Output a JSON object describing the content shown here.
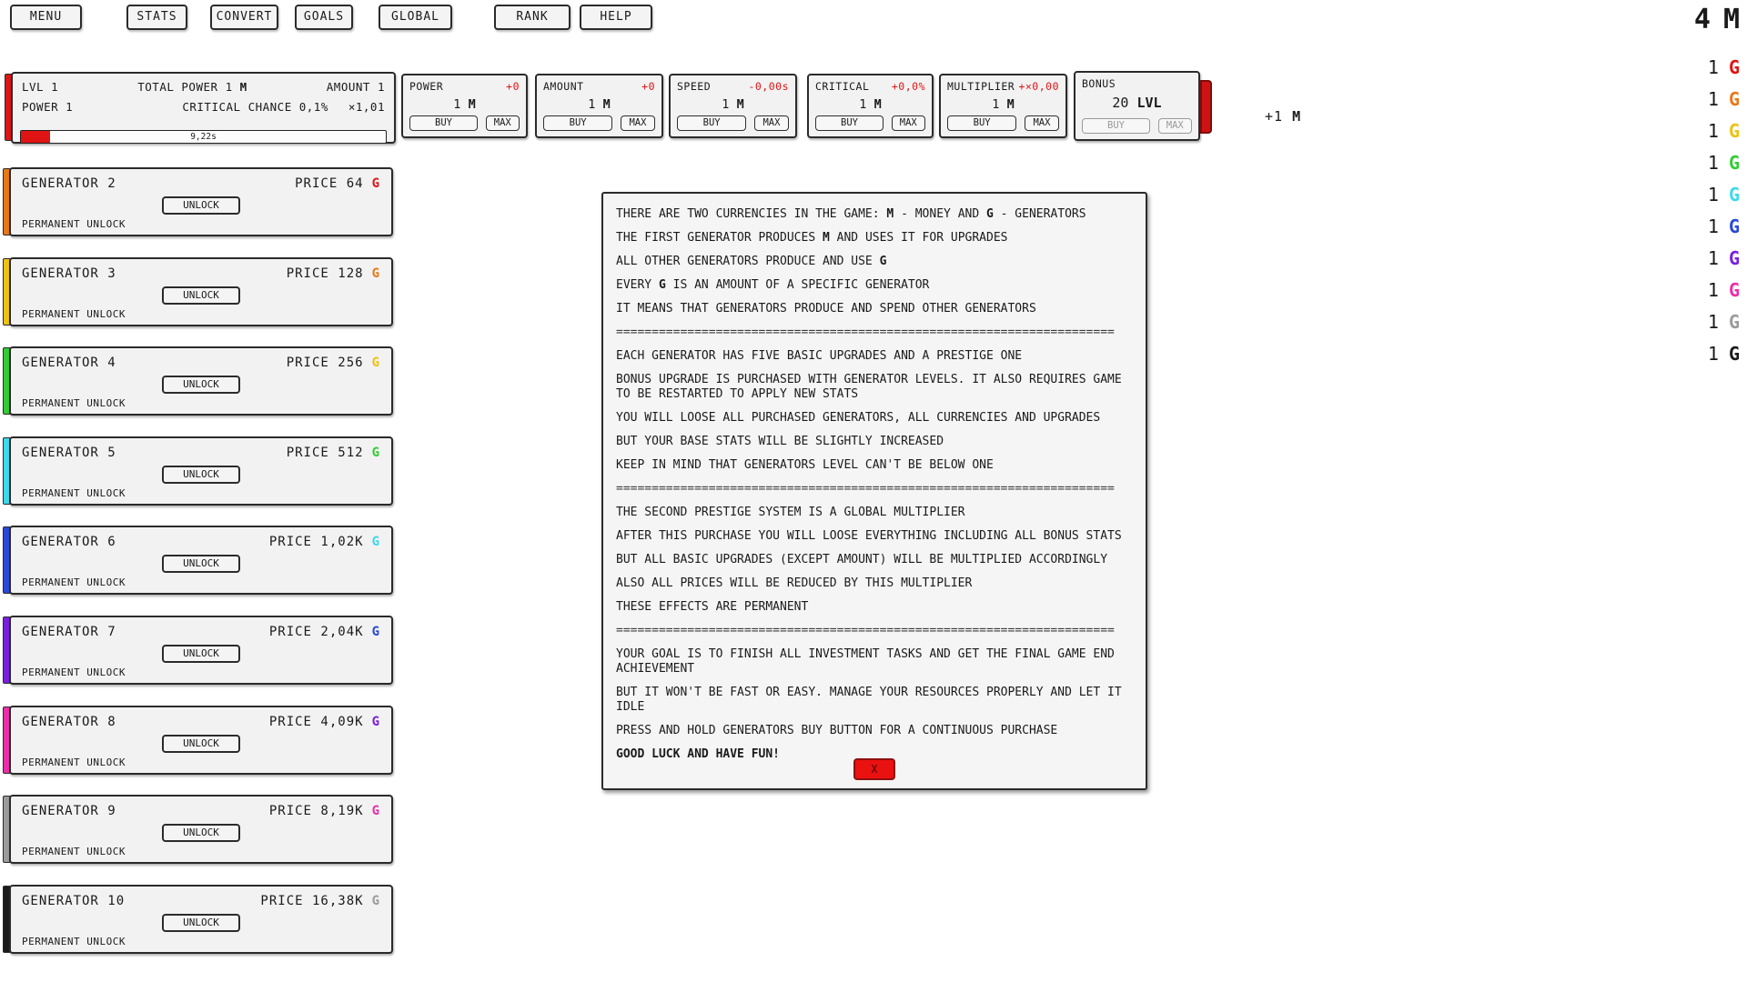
{
  "palette": {
    "red": "#e01414",
    "orange": "#e87817",
    "yellow": "#edc211",
    "green": "#33cc33",
    "cyan": "#3dd9ed",
    "blue": "#2849d8",
    "purple": "#7a1fe0",
    "magenta": "#ea2fa8",
    "gray": "#9b9b9b",
    "black": "#1a1a1a",
    "accent_red": "#e01414"
  },
  "menu_bar": {
    "buttons": [
      {
        "label": "MENU"
      },
      {
        "label": "STATS"
      },
      {
        "label": "CONVERT"
      },
      {
        "label": "GOALS"
      },
      {
        "label": "GLOBAL"
      },
      {
        "label": "RANK"
      },
      {
        "label": "HELP"
      }
    ]
  },
  "currencies": {
    "money": {
      "value": "4",
      "symbol": "M"
    },
    "generators": [
      {
        "value": "1",
        "symbol": "G",
        "color": "#e01414"
      },
      {
        "value": "1",
        "symbol": "G",
        "color": "#e87817"
      },
      {
        "value": "1",
        "symbol": "G",
        "color": "#edc211"
      },
      {
        "value": "1",
        "symbol": "G",
        "color": "#33cc33"
      },
      {
        "value": "1",
        "symbol": "G",
        "color": "#3dd9ed"
      },
      {
        "value": "1",
        "symbol": "G",
        "color": "#2849d8"
      },
      {
        "value": "1",
        "symbol": "G",
        "color": "#7a1fe0"
      },
      {
        "value": "1",
        "symbol": "G",
        "color": "#ea2fa8"
      },
      {
        "value": "1",
        "symbol": "G",
        "color": "#9b9b9b"
      },
      {
        "value": "1",
        "symbol": "G",
        "color": "#1a1a1a"
      }
    ]
  },
  "main_generator": {
    "lvl": "LVL 1",
    "total_power_label": "TOTAL POWER",
    "total_power_value": "1",
    "total_power_symbol": "M",
    "amount": "AMOUNT 1",
    "power": "POWER 1",
    "critical": "CRITICAL CHANCE 0,1%",
    "critical_multiplier": "×1,01",
    "progress": {
      "time_remaining": "9,22s",
      "fill_percent": 8
    },
    "stripe_color": "#e01414"
  },
  "upgrades": [
    {
      "name": "POWER",
      "delta": "+0",
      "price_value": "1",
      "price_symbol": "M",
      "buy_label": "BUY",
      "max_label": "MAX"
    },
    {
      "name": "AMOUNT",
      "delta": "+0",
      "price_value": "1",
      "price_symbol": "M",
      "buy_label": "BUY",
      "max_label": "MAX"
    },
    {
      "name": "SPEED",
      "delta": "-0,00s",
      "price_value": "1",
      "price_symbol": "M",
      "buy_label": "BUY",
      "max_label": "MAX"
    },
    {
      "name": "CRITICAL",
      "delta": "+0,0%",
      "price_value": "1",
      "price_symbol": "M",
      "buy_label": "BUY",
      "max_label": "MAX"
    },
    {
      "name": "MULTIPLIER",
      "delta": "+×0,00",
      "price_value": "1",
      "price_symbol": "M",
      "buy_label": "BUY",
      "max_label": "MAX"
    }
  ],
  "bonus": {
    "name": "BONUS",
    "value": "20",
    "unit": "LVL",
    "buy_label": "BUY",
    "max_label": "MAX",
    "disabled": true
  },
  "floating_gain": {
    "text": "+1",
    "symbol": "M"
  },
  "generators": [
    {
      "name": "GENERATOR 2",
      "price_label": "PRICE",
      "price_value": "64",
      "price_symbol": "G",
      "price_color": "#e01414",
      "stripe_color": "#e87817",
      "unlock_label": "UNLOCK",
      "footer": "PERMANENT UNLOCK"
    },
    {
      "name": "GENERATOR 3",
      "price_label": "PRICE",
      "price_value": "128",
      "price_symbol": "G",
      "price_color": "#e87817",
      "stripe_color": "#edc211",
      "unlock_label": "UNLOCK",
      "footer": "PERMANENT UNLOCK"
    },
    {
      "name": "GENERATOR 4",
      "price_label": "PRICE",
      "price_value": "256",
      "price_symbol": "G",
      "price_color": "#edc211",
      "stripe_color": "#33cc33",
      "unlock_label": "UNLOCK",
      "footer": "PERMANENT UNLOCK"
    },
    {
      "name": "GENERATOR 5",
      "price_label": "PRICE",
      "price_value": "512",
      "price_symbol": "G",
      "price_color": "#33cc33",
      "stripe_color": "#3dd9ed",
      "unlock_label": "UNLOCK",
      "footer": "PERMANENT UNLOCK"
    },
    {
      "name": "GENERATOR 6",
      "price_label": "PRICE",
      "price_value": "1,02K",
      "price_symbol": "G",
      "price_color": "#3dd9ed",
      "stripe_color": "#2849d8",
      "unlock_label": "UNLOCK",
      "footer": "PERMANENT UNLOCK"
    },
    {
      "name": "GENERATOR 7",
      "price_label": "PRICE",
      "price_value": "2,04K",
      "price_symbol": "G",
      "price_color": "#2849d8",
      "stripe_color": "#7a1fe0",
      "unlock_label": "UNLOCK",
      "footer": "PERMANENT UNLOCK"
    },
    {
      "name": "GENERATOR 8",
      "price_label": "PRICE",
      "price_value": "4,09K",
      "price_symbol": "G",
      "price_color": "#7a1fe0",
      "stripe_color": "#ea2fa8",
      "unlock_label": "UNLOCK",
      "footer": "PERMANENT UNLOCK"
    },
    {
      "name": "GENERATOR 9",
      "price_label": "PRICE",
      "price_value": "8,19K",
      "price_symbol": "G",
      "price_color": "#ea2fa8",
      "stripe_color": "#9b9b9b",
      "unlock_label": "UNLOCK",
      "footer": "PERMANENT UNLOCK"
    },
    {
      "name": "GENERATOR 10",
      "price_label": "PRICE",
      "price_value": "16,38K",
      "price_symbol": "G",
      "price_color": "#9b9b9b",
      "stripe_color": "#1a1a1a",
      "unlock_label": "UNLOCK",
      "footer": "PERMANENT UNLOCK"
    }
  ],
  "help_dialog": {
    "separator": "======================================================================",
    "close_label": "X",
    "lines": [
      {
        "segments": [
          {
            "text": "THERE ARE TWO CURRENCIES IN THE GAME: "
          },
          {
            "text": "M",
            "bold": true
          },
          {
            "text": " - MONEY AND "
          },
          {
            "text": "G",
            "bold": true
          },
          {
            "text": " - GENERATORS"
          }
        ]
      },
      {
        "segments": [
          {
            "text": "THE FIRST GENERATOR PRODUCES "
          },
          {
            "text": "M",
            "bold": true
          },
          {
            "text": " AND USES IT FOR UPGRADES"
          }
        ]
      },
      {
        "segments": [
          {
            "text": "ALL OTHER GENERATORS PRODUCE AND USE "
          },
          {
            "text": "G",
            "bold": true
          }
        ]
      },
      {
        "segments": [
          {
            "text": "EVERY "
          },
          {
            "text": "G",
            "bold": true
          },
          {
            "text": " IS AN AMOUNT OF A SPECIFIC GENERATOR"
          }
        ]
      },
      {
        "segments": [
          {
            "text": "IT MEANS THAT GENERATORS PRODUCE AND SPEND OTHER GENERATORS"
          }
        ]
      },
      {
        "separator": true
      },
      {
        "segments": [
          {
            "text": "EACH GENERATOR HAS FIVE BASIC UPGRADES AND A PRESTIGE ONE"
          }
        ]
      },
      {
        "segments": [
          {
            "text": "BONUS UPGRADE IS PURCHASED WITH GENERATOR LEVELS. IT ALSO REQUIRES GAME TO BE RESTARTED TO APPLY NEW STATS"
          }
        ]
      },
      {
        "segments": [
          {
            "text": "YOU WILL LOOSE ALL PURCHASED GENERATORS, ALL CURRENCIES AND UPGRADES"
          }
        ]
      },
      {
        "segments": [
          {
            "text": "BUT YOUR BASE STATS WILL BE SLIGHTLY INCREASED"
          }
        ]
      },
      {
        "segments": [
          {
            "text": "KEEP IN MIND THAT GENERATORS LEVEL CAN'T BE BELOW ONE"
          }
        ]
      },
      {
        "separator": true
      },
      {
        "segments": [
          {
            "text": "THE SECOND PRESTIGE SYSTEM IS A GLOBAL MULTIPLIER"
          }
        ]
      },
      {
        "segments": [
          {
            "text": "AFTER THIS PURCHASE YOU WILL LOOSE EVERYTHING INCLUDING ALL BONUS STATS"
          }
        ]
      },
      {
        "segments": [
          {
            "text": "BUT ALL BASIC UPGRADES (EXCEPT AMOUNT) WILL BE MULTIPLIED ACCORDINGLY"
          }
        ]
      },
      {
        "segments": [
          {
            "text": "ALSO ALL PRICES WILL BE REDUCED BY THIS MULTIPLIER"
          }
        ]
      },
      {
        "segments": [
          {
            "text": "THESE EFFECTS ARE PERMANENT"
          }
        ]
      },
      {
        "separator": true
      },
      {
        "segments": [
          {
            "text": "YOUR GOAL IS TO FINISH ALL INVESTMENT TASKS AND GET THE FINAL GAME END ACHIEVEMENT"
          }
        ]
      },
      {
        "segments": [
          {
            "text": "BUT IT WON'T BE FAST OR EASY. MANAGE YOUR RESOURCES PROPERLY AND LET IT IDLE"
          }
        ]
      },
      {
        "segments": [
          {
            "text": "PRESS AND HOLD GENERATORS BUY BUTTON FOR A CONTINUOUS PURCHASE"
          }
        ]
      },
      {
        "segments": [
          {
            "text": "GOOD LUCK AND HAVE FUN!",
            "bold": true
          }
        ]
      }
    ]
  }
}
